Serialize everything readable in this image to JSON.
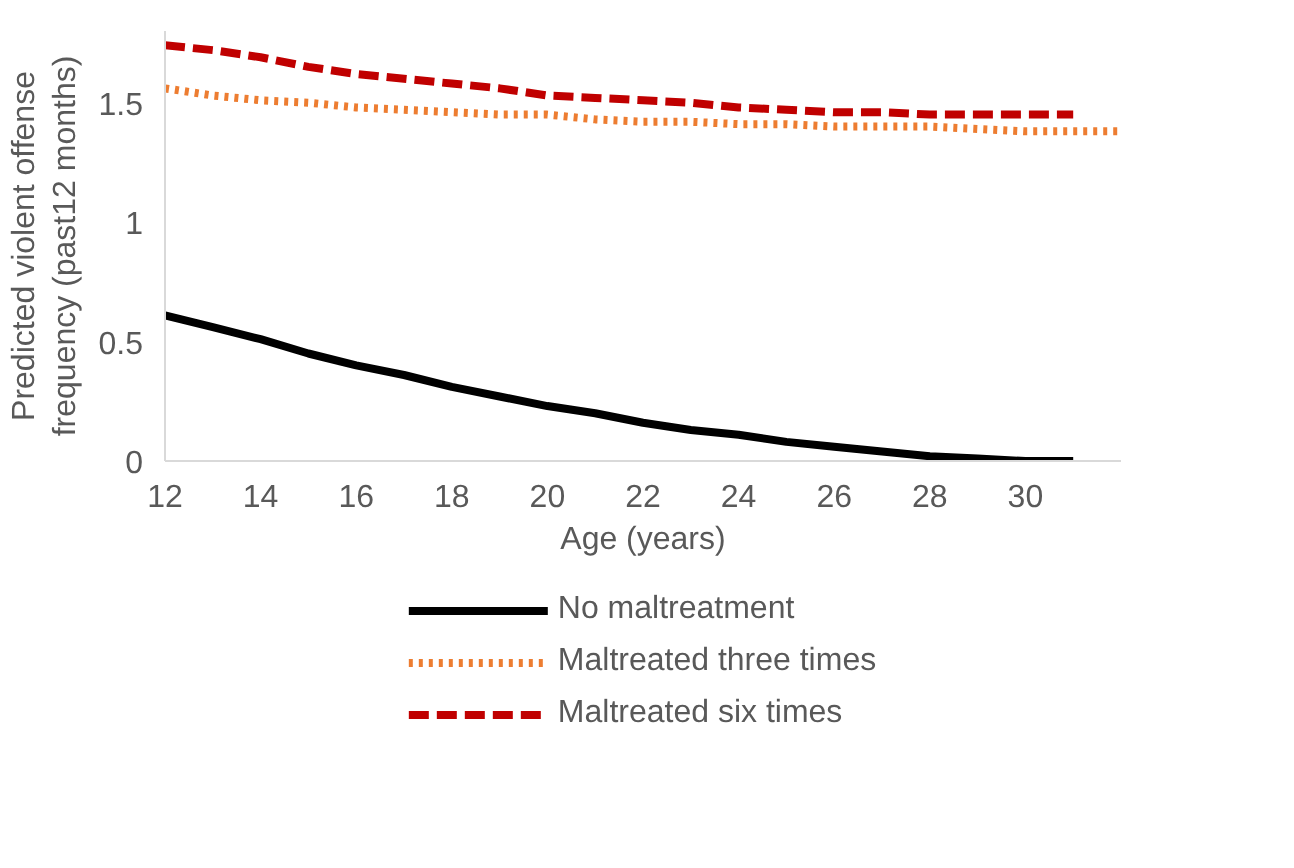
{
  "chart_data": {
    "type": "line",
    "xlabel": "Age (years)",
    "ylabel": "Predicted violent offense frequency (past12 months)",
    "x": [
      12,
      13,
      14,
      15,
      16,
      17,
      18,
      19,
      20,
      21,
      22,
      23,
      24,
      25,
      26,
      27,
      28,
      29,
      30,
      31,
      32
    ],
    "xlim": [
      12,
      32
    ],
    "xticks": [
      12,
      14,
      16,
      18,
      20,
      22,
      24,
      26,
      28,
      30
    ],
    "ylim": [
      0,
      1.8
    ],
    "yticks": [
      0,
      0.5,
      1,
      1.5
    ],
    "series": [
      {
        "name": "No maltreatment",
        "color": "#000000",
        "line_style": "solid",
        "values": [
          0.61,
          0.56,
          0.51,
          0.45,
          0.4,
          0.36,
          0.31,
          0.27,
          0.23,
          0.2,
          0.16,
          0.13,
          0.11,
          0.08,
          0.06,
          0.04,
          0.02,
          0.01,
          0.0,
          0.0,
          null
        ]
      },
      {
        "name": "Maltreated three times",
        "color": "#ed7d31",
        "line_style": "dotted",
        "values": [
          1.56,
          1.53,
          1.51,
          1.5,
          1.48,
          1.47,
          1.46,
          1.45,
          1.45,
          1.43,
          1.42,
          1.42,
          1.41,
          1.41,
          1.4,
          1.4,
          1.4,
          1.39,
          1.38,
          1.38,
          1.38
        ]
      },
      {
        "name": "Maltreated six times",
        "color": "#c00000",
        "line_style": "dashed",
        "values": [
          1.74,
          1.72,
          1.69,
          1.65,
          1.62,
          1.6,
          1.58,
          1.56,
          1.53,
          1.52,
          1.51,
          1.5,
          1.48,
          1.47,
          1.46,
          1.46,
          1.45,
          1.45,
          1.45,
          1.45,
          null
        ]
      }
    ],
    "grid": false,
    "legend": "bottom",
    "marker": "none"
  }
}
